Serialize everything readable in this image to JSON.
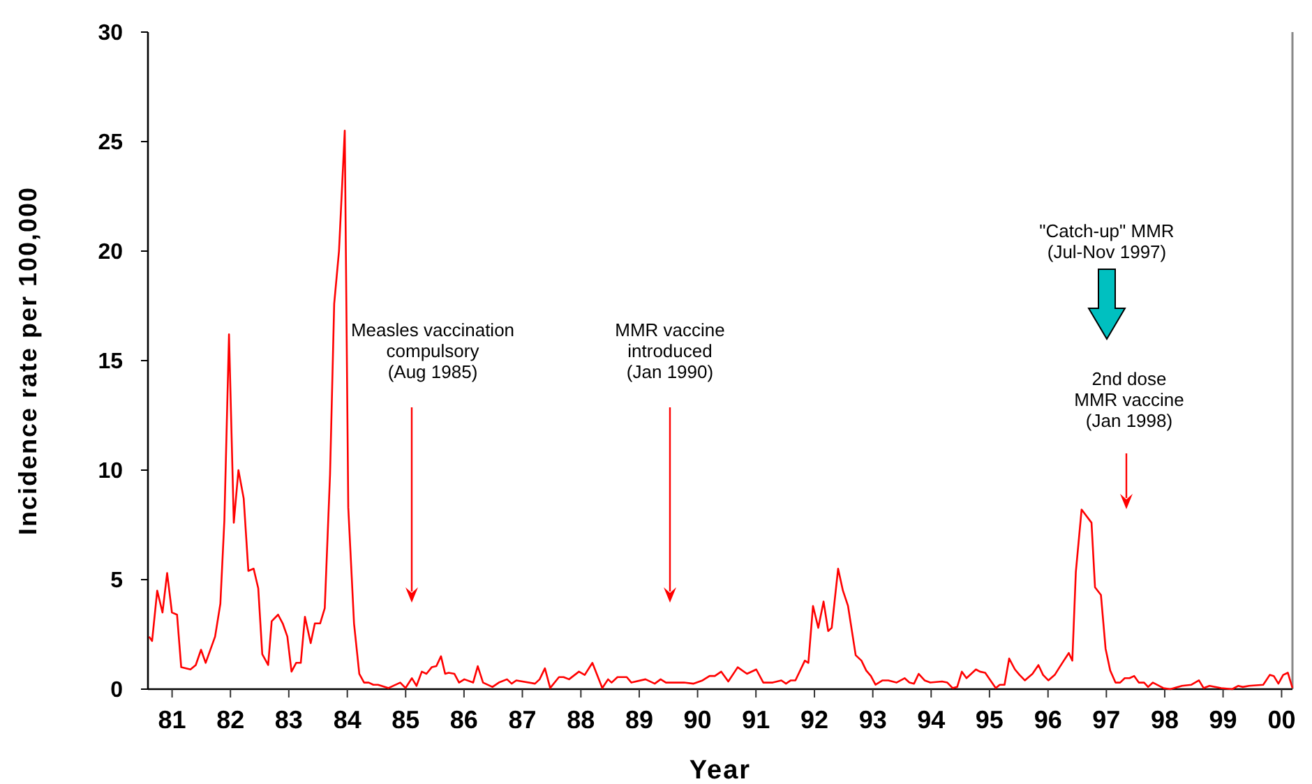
{
  "chart_data": {
    "type": "line",
    "xlabel": "Year",
    "ylabel": "Incidence rate per 100,000",
    "xlim": [
      "1981-01-01",
      "2000-08-08"
    ],
    "ylim": [
      0,
      30
    ],
    "yticks": [
      0,
      5,
      10,
      15,
      20,
      25,
      30
    ],
    "xticks": [
      {
        "value": "1981-06-01",
        "label": "81"
      },
      {
        "value": "1982-06-01",
        "label": "82"
      },
      {
        "value": "1983-06-01",
        "label": "83"
      },
      {
        "value": "1984-06-01",
        "label": "84"
      },
      {
        "value": "1985-06-01",
        "label": "85"
      },
      {
        "value": "1986-06-01",
        "label": "86"
      },
      {
        "value": "1987-06-01",
        "label": "87"
      },
      {
        "value": "1988-06-01",
        "label": "88"
      },
      {
        "value": "1989-06-01",
        "label": "89"
      },
      {
        "value": "1990-06-01",
        "label": "90"
      },
      {
        "value": "1991-06-01",
        "label": "91"
      },
      {
        "value": "1992-06-01",
        "label": "92"
      },
      {
        "value": "1993-06-01",
        "label": "93"
      },
      {
        "value": "1994-06-01",
        "label": "94"
      },
      {
        "value": "1995-06-01",
        "label": "95"
      },
      {
        "value": "1996-06-01",
        "label": "96"
      },
      {
        "value": "1997-06-01",
        "label": "97"
      },
      {
        "value": "1998-06-01",
        "label": "98"
      },
      {
        "value": "1999-06-01",
        "label": "99"
      },
      {
        "value": "2000-06-01",
        "label": "00"
      }
    ],
    "grid": false,
    "marker": "none",
    "line_style": "solid",
    "annotations": [
      "Measles vaccination\ncompulsory\n(Aug 1985)",
      "MMR vaccine\nintroduced\n(Jan 1990)",
      "\"Catch-up\" MMR\n(Jul-Nov 1997)",
      "2nd dose\nMMR vaccine\n(Jan 1998)"
    ],
    "series": [
      {
        "color": "#ff0000",
        "x": [
          "1981-01-08",
          "1981-01-27",
          "1981-02-28",
          "1981-04-02",
          "1981-05-01",
          "1981-05-31",
          "1981-07-02",
          "1981-07-28",
          "1981-09-24",
          "1981-10-27",
          "1981-11-29",
          "1981-12-28",
          "1982-02-25",
          "1982-03-30",
          "1982-04-24",
          "1982-05-23",
          "1982-06-22",
          "1982-07-21",
          "1982-08-23",
          "1982-09-21",
          "1982-10-24",
          "1982-11-22",
          "1982-12-17",
          "1983-01-23",
          "1983-02-14",
          "1983-03-26",
          "1983-04-24",
          "1983-05-23",
          "1983-06-18",
          "1983-07-17",
          "1983-08-15",
          "1983-09-10",
          "1983-10-16",
          "1983-11-11",
          "1983-12-14",
          "1984-01-12",
          "1984-02-14",
          "1984-03-11",
          "1984-04-10",
          "1984-05-16",
          "1984-06-07",
          "1984-07-13",
          "1984-08-15",
          "1984-09-14",
          "1984-10-13",
          "1984-11-11",
          "1984-12-10",
          "1985-02-14",
          "1985-04-28",
          "1985-05-31",
          "1985-07-10",
          "1985-08-08",
          "1985-09-10",
          "1985-10-09",
          "1985-11-11",
          "1985-12-10",
          "1986-01-08",
          "1986-02-03",
          "1986-02-25",
          "1986-04-02",
          "1986-05-01",
          "1986-06-03",
          "1986-07-28",
          "1986-08-26",
          "1986-09-28",
          "1986-11-26",
          "1987-01-05",
          "1987-02-25",
          "1987-03-26",
          "1987-04-24",
          "1987-08-19",
          "1987-09-17",
          "1987-10-20",
          "1987-11-22",
          "1988-01-16",
          "1988-02-14",
          "1988-03-19",
          "1988-05-20",
          "1988-06-25",
          "1988-08-12",
          "1988-10-13",
          "1988-11-18",
          "1988-12-10",
          "1989-01-16",
          "1989-03-15",
          "1989-04-13",
          "1989-07-10",
          "1989-09-06",
          "1989-10-13",
          "1989-11-15",
          "1990-03-08",
          "1990-05-05",
          "1990-07-02",
          "1990-08-15",
          "1990-09-17",
          "1990-10-27",
          "1990-12-10",
          "1991-02-07",
          "1991-04-06",
          "1991-06-03",
          "1991-07-17",
          "1991-09-14",
          "1991-11-07",
          "1991-12-06",
          "1992-01-05",
          "1992-02-03",
          "1992-04-02",
          "1992-04-24",
          "1992-05-23",
          "1992-06-25",
          "1992-07-28",
          "1992-08-26",
          "1992-09-17",
          "1992-10-27",
          "1992-11-26",
          "1992-12-28",
          "1993-02-14",
          "1993-03-22",
          "1993-04-21",
          "1993-05-20",
          "1993-06-18",
          "1993-08-01",
          "1993-09-06",
          "1993-10-27",
          "1993-12-17",
          "1994-01-16",
          "1994-02-14",
          "1994-03-15",
          "1994-04-21",
          "1994-05-27",
          "1994-08-08",
          "1994-09-10",
          "1994-10-13",
          "1994-11-11",
          "1994-12-10",
          "1995-01-08",
          "1995-03-08",
          "1995-04-02",
          "1995-05-05",
          "1995-07-10",
          "1995-08-04",
          "1995-09-03",
          "1995-10-02",
          "1995-11-07",
          "1995-12-06",
          "1996-01-08",
          "1996-02-25",
          "1996-04-02",
          "1996-05-01",
          "1996-06-03",
          "1996-07-13",
          "1996-08-12",
          "1996-10-09",
          "1996-10-31",
          "1996-11-22",
          "1996-12-28",
          "1997-02-28",
          "1997-03-22",
          "1997-04-28",
          "1997-05-27",
          "1997-06-25",
          "1997-07-28",
          "1997-08-26",
          "1997-09-24",
          "1997-10-24",
          "1997-11-22",
          "1997-12-21",
          "1998-01-23",
          "1998-02-17",
          "1998-03-19",
          "1998-05-23",
          "1998-07-06",
          "1998-09-17",
          "1998-11-15",
          "1999-01-01",
          "1999-01-30",
          "1999-03-08",
          "1999-05-20",
          "1999-07-28",
          "1999-09-03",
          "1999-10-02",
          "1999-11-11",
          "2000-02-07",
          "2000-02-21",
          "2000-03-19",
          "2000-04-13",
          "2000-05-12",
          "2000-06-11",
          "2000-07-10",
          "2000-08-08"
        ],
        "values": [
          2.4,
          2.2,
          4.5,
          3.5,
          5.3,
          3.5,
          3.4,
          1.0,
          0.9,
          1.1,
          1.8,
          1.2,
          2.4,
          3.9,
          7.7,
          16.2,
          7.6,
          10.0,
          8.7,
          5.4,
          5.5,
          4.6,
          1.6,
          1.1,
          3.1,
          3.4,
          3.0,
          2.4,
          0.8,
          1.2,
          1.2,
          3.3,
          2.1,
          3.0,
          3.0,
          3.7,
          9.8,
          17.6,
          20.0,
          25.5,
          8.3,
          3.0,
          0.7,
          0.3,
          0.3,
          0.2,
          0.2,
          0.05,
          0.3,
          0.05,
          0.5,
          0.15,
          0.8,
          0.7,
          1.0,
          1.05,
          1.5,
          0.7,
          0.75,
          0.7,
          0.3,
          0.45,
          0.3,
          1.05,
          0.3,
          0.1,
          0.3,
          0.45,
          0.25,
          0.4,
          0.25,
          0.45,
          0.95,
          0.05,
          0.55,
          0.55,
          0.45,
          0.8,
          0.65,
          1.2,
          0.05,
          0.45,
          0.3,
          0.55,
          0.55,
          0.3,
          0.45,
          0.25,
          0.45,
          0.3,
          0.3,
          0.25,
          0.4,
          0.6,
          0.6,
          0.8,
          0.35,
          1.0,
          0.7,
          0.9,
          0.3,
          0.3,
          0.4,
          0.25,
          0.4,
          0.4,
          1.3,
          1.2,
          3.8,
          2.8,
          4.0,
          2.65,
          2.8,
          5.5,
          4.5,
          3.8,
          1.55,
          1.3,
          0.85,
          0.6,
          0.2,
          0.4,
          0.4,
          0.3,
          0.5,
          0.3,
          0.25,
          0.7,
          0.4,
          0.3,
          0.35,
          0.3,
          0.05,
          0.1,
          0.8,
          0.5,
          0.9,
          0.8,
          0.75,
          0.05,
          0.2,
          0.2,
          1.4,
          0.9,
          0.65,
          0.4,
          0.7,
          1.1,
          0.65,
          0.4,
          0.65,
          1.0,
          1.65,
          1.3,
          5.35,
          8.2,
          7.6,
          4.65,
          4.3,
          1.85,
          0.85,
          0.3,
          0.3,
          0.5,
          0.5,
          0.6,
          0.3,
          0.3,
          0.1,
          0.3,
          0.05,
          0,
          0.15,
          0.2,
          0.4,
          0.05,
          0.15,
          0.05,
          0,
          0.15,
          0.1,
          0.15,
          0.2,
          0.35,
          0.65,
          0.6,
          0.25,
          0.65,
          0.75,
          0.05
        ]
      }
    ]
  }
}
